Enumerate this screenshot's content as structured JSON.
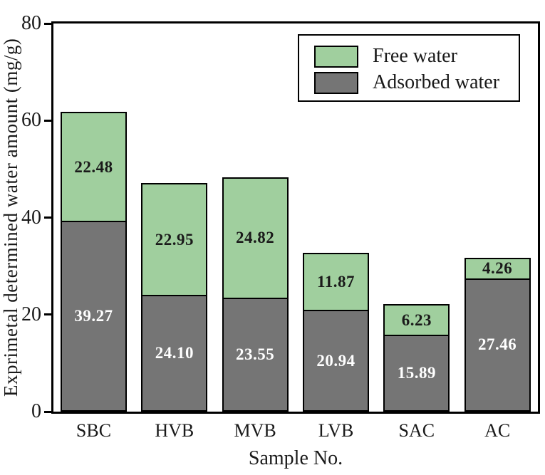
{
  "chart_data": {
    "type": "bar",
    "stacked": true,
    "title": "",
    "xlabel": "Sample No.",
    "ylabel": "Exprimetal determined water amount (mg/g)",
    "ylim": [
      0,
      80
    ],
    "yticks": [
      0,
      20,
      40,
      60,
      80
    ],
    "grid": false,
    "categories": [
      "SBC",
      "HVB",
      "MVB",
      "LVB",
      "SAC",
      "AC"
    ],
    "series": [
      {
        "name": "Adsorbed water",
        "color": "#757575",
        "label_color": "#ffffff",
        "values": [
          39.27,
          24.1,
          23.55,
          20.94,
          15.89,
          27.46
        ]
      },
      {
        "name": "Free water",
        "color": "#a0cf9e",
        "label_color": "#1a1a1a",
        "values": [
          22.48,
          22.95,
          24.82,
          11.87,
          6.23,
          4.26
        ]
      }
    ],
    "totals": [
      61.75,
      47.05,
      48.37,
      32.81,
      22.12,
      31.72
    ],
    "bar_border_color": "#000000",
    "legend": {
      "position": "top-right",
      "entries": [
        {
          "label": "Free water",
          "color": "#a0cf9e"
        },
        {
          "label": "Adsorbed water",
          "color": "#757575"
        }
      ]
    }
  },
  "colors": {
    "background": "#ffffff",
    "axis": "#000000",
    "text": "#1a1a1a"
  }
}
